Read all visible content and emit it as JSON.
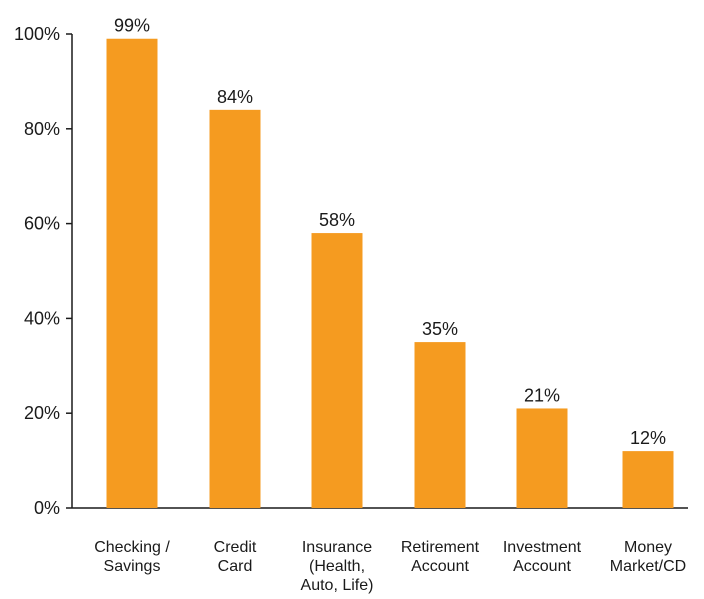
{
  "chart_data": {
    "type": "bar",
    "title": "",
    "xlabel": "",
    "ylabel": "",
    "categories": [
      "Checking / Savings",
      "Credit Card",
      "Insurance (Health, Auto, Life)",
      "Retirement Account",
      "Investment Account",
      "Money Market/CD"
    ],
    "category_label_lines": [
      [
        "Checking /",
        "Savings"
      ],
      [
        "Credit",
        "Card"
      ],
      [
        "Insurance",
        "(Health,",
        "Auto, Life)"
      ],
      [
        "Retirement",
        "Account"
      ],
      [
        "Investment",
        "Account"
      ],
      [
        "Money",
        "Market/CD"
      ]
    ],
    "values": [
      99,
      84,
      58,
      35,
      21,
      12
    ],
    "data_labels": [
      "99%",
      "84%",
      "58%",
      "35%",
      "21%",
      "12%"
    ],
    "ylim": [
      0,
      100
    ],
    "yticks": [
      0,
      20,
      40,
      60,
      80,
      100
    ],
    "ytick_labels": [
      "0%",
      "20%",
      "40%",
      "60%",
      "80%",
      "100%"
    ],
    "grid": false,
    "legend": "none",
    "bar_color": "#f59b20",
    "axis_color": "#1a1a1a"
  }
}
